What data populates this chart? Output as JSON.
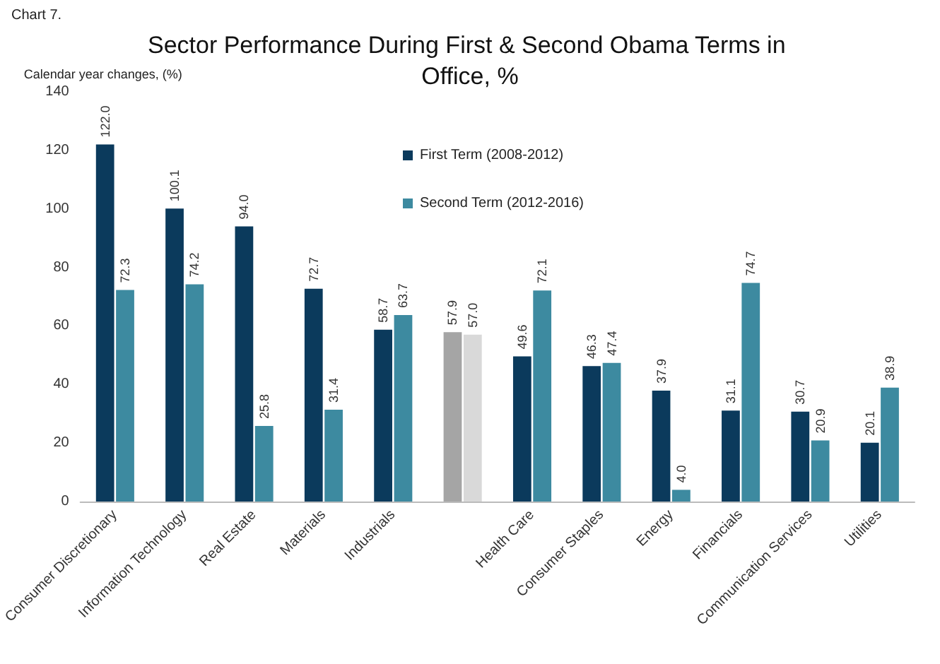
{
  "chart_data": {
    "type": "bar",
    "title": "Sector Performance During First & Second Obama Terms in Office, %",
    "ylabel": "Calendar year changes, (%)",
    "annotations": [
      "Chart 7."
    ],
    "categories": [
      "Consumer Discretionary",
      "Information Technology",
      "Real Estate",
      "Materials",
      "Industrials",
      null,
      "Health Care",
      "Consumer Staples",
      "Energy",
      "Financials",
      "Communication Services",
      "Utilities"
    ],
    "series": [
      {
        "name": "First Term (2008-2012)",
        "color": "#0b3a5c",
        "colors": [
          "#0b3a5c",
          "#0b3a5c",
          "#0b3a5c",
          "#0b3a5c",
          "#0b3a5c",
          "#a5a5a5",
          "#0b3a5c",
          "#0b3a5c",
          "#0b3a5c",
          "#0b3a5c",
          "#0b3a5c",
          "#0b3a5c"
        ],
        "values": [
          122.0,
          100.1,
          94.0,
          72.7,
          58.7,
          57.9,
          49.6,
          46.3,
          37.9,
          31.1,
          30.7,
          20.1
        ],
        "value_labels": [
          "122.0",
          "100.1",
          "94.0",
          "72.7",
          "58.7",
          "57.9",
          "49.6",
          "46.3",
          "37.9",
          "31.1",
          "30.7",
          "20.1"
        ]
      },
      {
        "name": "Second Term (2012-2016)",
        "color": "#3d8aa0",
        "colors": [
          "#3d8aa0",
          "#3d8aa0",
          "#3d8aa0",
          "#3d8aa0",
          "#3d8aa0",
          "#d9d9d9",
          "#3d8aa0",
          "#3d8aa0",
          "#3d8aa0",
          "#3d8aa0",
          "#3d8aa0",
          "#3d8aa0"
        ],
        "values": [
          72.3,
          74.2,
          25.8,
          31.4,
          63.7,
          57.0,
          72.1,
          47.4,
          4.0,
          74.7,
          20.9,
          38.9
        ],
        "value_labels": [
          "72.3",
          "74.2",
          "25.8",
          "31.4",
          "63.7",
          "57.0",
          "72.1",
          "47.4",
          "4.0",
          "74.7",
          "20.9",
          "38.9"
        ]
      }
    ],
    "ylim": [
      0,
      140
    ],
    "yticks": [
      0,
      20,
      40,
      60,
      80,
      100,
      120,
      140
    ],
    "grid": false,
    "legend": "top"
  }
}
